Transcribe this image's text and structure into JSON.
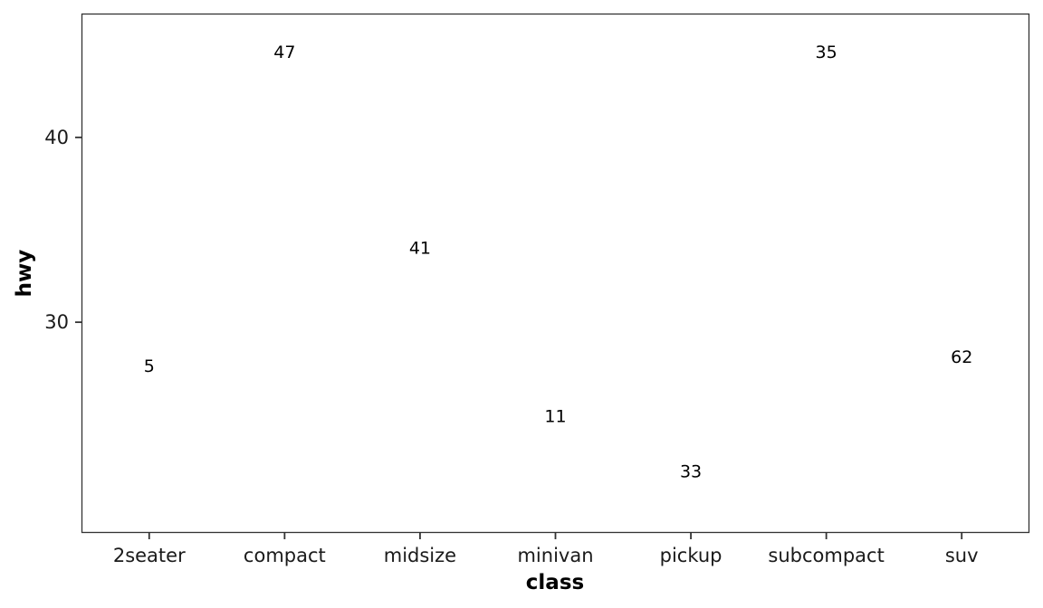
{
  "chart_data": {
    "type": "scatter",
    "geom": "text",
    "xlabel": "class",
    "ylabel": "hwy",
    "categories": [
      "2seater",
      "compact",
      "midsize",
      "minivan",
      "pickup",
      "subcompact",
      "suv"
    ],
    "points": [
      {
        "x": "2seater",
        "y": 27.6,
        "label": "5"
      },
      {
        "x": "compact",
        "y": 44.6,
        "label": "47"
      },
      {
        "x": "midsize",
        "y": 34.0,
        "label": "41"
      },
      {
        "x": "minivan",
        "y": 24.9,
        "label": "11"
      },
      {
        "x": "pickup",
        "y": 21.9,
        "label": "33"
      },
      {
        "x": "subcompact",
        "y": 44.6,
        "label": "35"
      },
      {
        "x": "suv",
        "y": 28.1,
        "label": "62"
      }
    ],
    "y_ticks": [
      30,
      40
    ],
    "ylim": [
      18.6,
      46.7
    ],
    "grid": false,
    "legend": "none",
    "colors": {
      "text": "#000000",
      "panel_border": "#333333",
      "ticks": "#333333"
    }
  }
}
